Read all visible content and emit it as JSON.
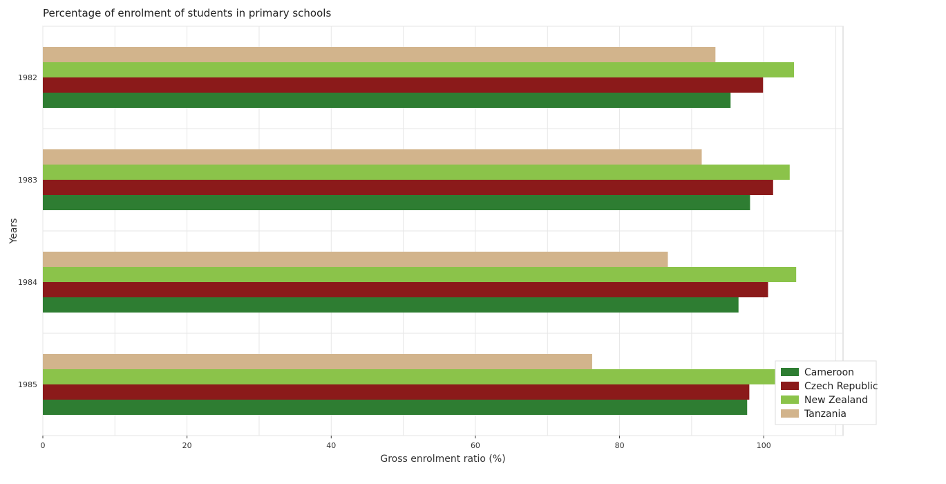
{
  "chart_data": {
    "type": "bar",
    "orientation": "horizontal",
    "title": "Percentage of enrolment of students in primary schools",
    "xlabel": "Gross enrolment ratio (%)",
    "ylabel": "Years",
    "categories": [
      "1982",
      "1983",
      "1984",
      "1985"
    ],
    "xlim": [
      0,
      111
    ],
    "xticks": [
      0,
      20,
      40,
      60,
      80,
      100
    ],
    "grid": true,
    "legend_position": "bottom-right",
    "series": [
      {
        "name": "Cameroon",
        "color": "#2e7d32",
        "values": [
          95.4,
          98.1,
          96.5,
          97.7
        ]
      },
      {
        "name": "Czech Republic",
        "color": "#8b1a1a",
        "values": [
          99.9,
          101.3,
          100.6,
          98.0
        ]
      },
      {
        "name": "New Zealand",
        "color": "#8bc34a",
        "values": [
          104.2,
          103.6,
          104.5,
          105.3
        ]
      },
      {
        "name": "Tanzania",
        "color": "#d2b48c",
        "values": [
          93.3,
          91.4,
          86.7,
          76.2
        ]
      }
    ]
  }
}
